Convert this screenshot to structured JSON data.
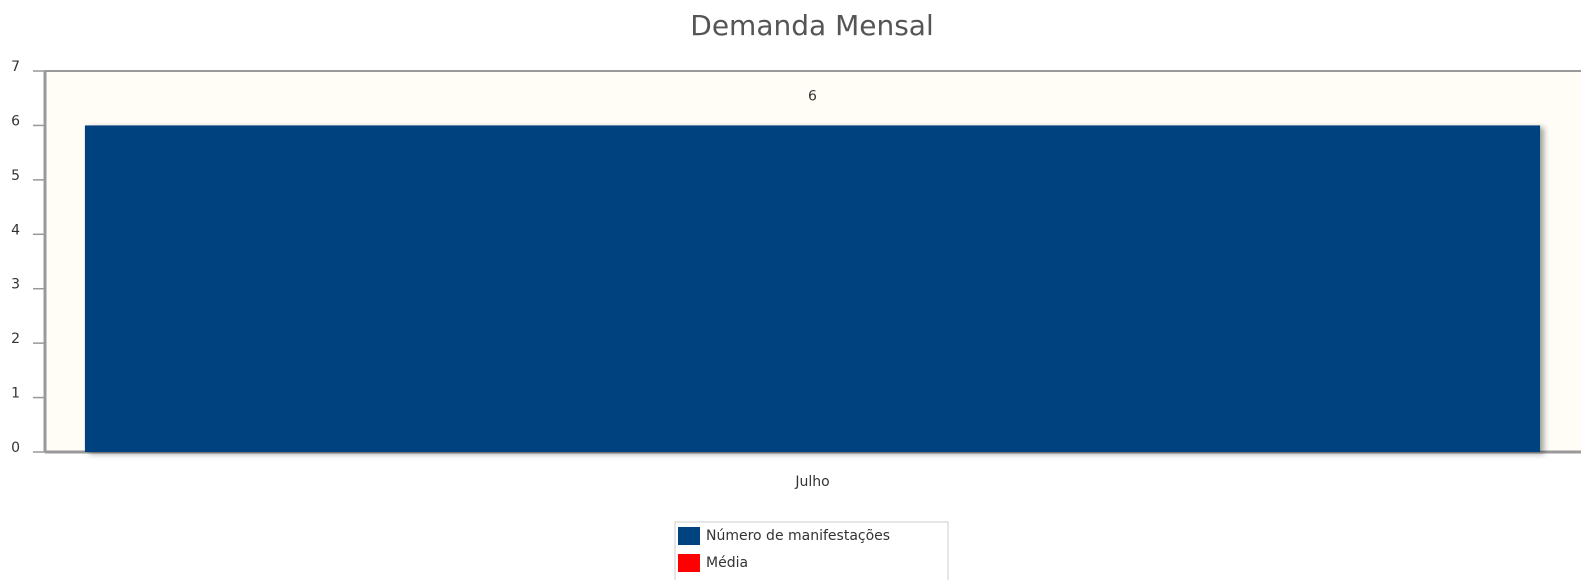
{
  "chart_data": {
    "type": "bar",
    "title": "Demanda Mensal",
    "categories": [
      "Julho"
    ],
    "series": [
      {
        "name": "Número de manifestações",
        "color": "#00437f",
        "values": [
          6
        ]
      },
      {
        "name": "Média",
        "color": "#ff0000",
        "values": [
          null
        ]
      }
    ],
    "ylim": [
      0,
      7
    ],
    "yticks": [
      0,
      1,
      2,
      3,
      4,
      5,
      6,
      7
    ],
    "grid": false,
    "legend": "bottom"
  }
}
